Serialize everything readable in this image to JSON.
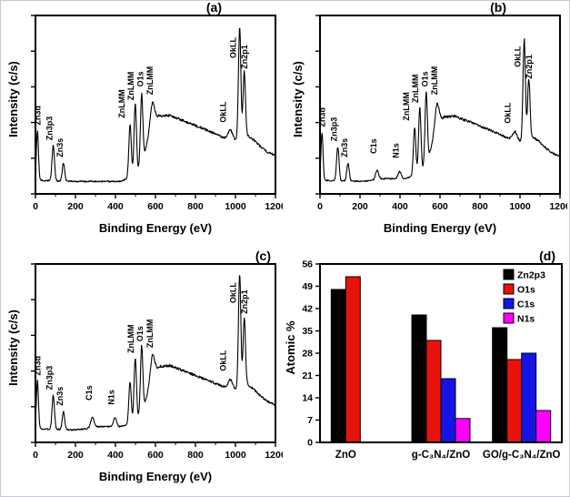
{
  "chart_data": [
    {
      "id": "a",
      "type": "line",
      "panel_tag": "(a)",
      "xlabel": "Binding Energy (eV)",
      "ylabel": "Intensity (c/s)",
      "xlim": [
        0,
        1200
      ],
      "xticks": [
        0,
        200,
        400,
        600,
        800,
        1000,
        1200
      ],
      "background": [
        [
          0,
          0.09
        ],
        [
          30,
          0.075
        ],
        [
          200,
          0.07
        ],
        [
          430,
          0.07
        ],
        [
          470,
          0.095
        ],
        [
          505,
          0.115
        ],
        [
          535,
          0.17
        ],
        [
          555,
          0.27
        ],
        [
          580,
          0.37
        ],
        [
          615,
          0.435
        ],
        [
          670,
          0.44
        ],
        [
          750,
          0.405
        ],
        [
          840,
          0.365
        ],
        [
          920,
          0.325
        ],
        [
          980,
          0.3
        ],
        [
          1010,
          0.3
        ],
        [
          1035,
          0.305
        ],
        [
          1060,
          0.325
        ],
        [
          1090,
          0.305
        ],
        [
          1120,
          0.27
        ],
        [
          1160,
          0.235
        ],
        [
          1200,
          0.215
        ]
      ],
      "peaks": [
        {
          "x": 10,
          "h": 0.27,
          "w": 5
        },
        {
          "x": 89,
          "h": 0.2,
          "w": 6
        },
        {
          "x": 140,
          "h": 0.1,
          "w": 6
        },
        {
          "x": 473,
          "h": 0.29,
          "w": 6
        },
        {
          "x": 499,
          "h": 0.39,
          "w": 6
        },
        {
          "x": 531,
          "h": 0.4,
          "w": 6
        },
        {
          "x": 585,
          "h": 0.13,
          "w": 11
        },
        {
          "x": 975,
          "h": 0.055,
          "w": 11
        },
        {
          "x": 1021,
          "h": 0.63,
          "w": 6
        },
        {
          "x": 1044,
          "h": 0.37,
          "w": 6
        }
      ],
      "labels": [
        {
          "text": "Zn3d",
          "x": 26,
          "y": 0.385
        },
        {
          "text": "Zn3p3",
          "x": 84,
          "y": 0.3
        },
        {
          "text": "Zn3s",
          "x": 136,
          "y": 0.205
        },
        {
          "text": "ZnLMM",
          "x": 446,
          "y": 0.425
        },
        {
          "text": "ZnLMM",
          "x": 492,
          "y": 0.525
        },
        {
          "text": "O1s",
          "x": 538,
          "y": 0.6
        },
        {
          "text": "ZnLMM",
          "x": 586,
          "y": 0.555
        },
        {
          "text": "OkLL",
          "x": 952,
          "y": 0.4
        },
        {
          "text": "OkLL",
          "x": 1002,
          "y": 0.76
        },
        {
          "text": "Zn2p1",
          "x": 1058,
          "y": 0.7
        }
      ]
    },
    {
      "id": "b",
      "type": "line",
      "panel_tag": "(b)",
      "xlabel": "Binding Energy (eV)",
      "ylabel": "Intensity (c/s)",
      "xlim": [
        0,
        1200
      ],
      "xticks": [
        0,
        200,
        400,
        600,
        800,
        1000,
        1200
      ],
      "background": [
        [
          0,
          0.09
        ],
        [
          30,
          0.075
        ],
        [
          200,
          0.07
        ],
        [
          260,
          0.075
        ],
        [
          310,
          0.085
        ],
        [
          420,
          0.085
        ],
        [
          470,
          0.1
        ],
        [
          505,
          0.12
        ],
        [
          535,
          0.175
        ],
        [
          560,
          0.275
        ],
        [
          585,
          0.375
        ],
        [
          620,
          0.43
        ],
        [
          675,
          0.435
        ],
        [
          755,
          0.4
        ],
        [
          845,
          0.36
        ],
        [
          925,
          0.32
        ],
        [
          985,
          0.295
        ],
        [
          1010,
          0.295
        ],
        [
          1035,
          0.3
        ],
        [
          1060,
          0.32
        ],
        [
          1090,
          0.3
        ],
        [
          1120,
          0.265
        ],
        [
          1160,
          0.23
        ],
        [
          1200,
          0.21
        ]
      ],
      "peaks": [
        {
          "x": 10,
          "h": 0.26,
          "w": 5
        },
        {
          "x": 89,
          "h": 0.19,
          "w": 6
        },
        {
          "x": 140,
          "h": 0.1,
          "w": 6
        },
        {
          "x": 285,
          "h": 0.05,
          "w": 8
        },
        {
          "x": 398,
          "h": 0.04,
          "w": 8
        },
        {
          "x": 473,
          "h": 0.27,
          "w": 6
        },
        {
          "x": 499,
          "h": 0.37,
          "w": 6
        },
        {
          "x": 531,
          "h": 0.4,
          "w": 6
        },
        {
          "x": 585,
          "h": 0.13,
          "w": 11
        },
        {
          "x": 975,
          "h": 0.05,
          "w": 11
        },
        {
          "x": 1021,
          "h": 0.57,
          "w": 6
        },
        {
          "x": 1044,
          "h": 0.34,
          "w": 6
        }
      ],
      "labels": [
        {
          "text": "Zn3d",
          "x": 26,
          "y": 0.375
        },
        {
          "text": "Zn3p3",
          "x": 84,
          "y": 0.295
        },
        {
          "text": "Zn3s",
          "x": 136,
          "y": 0.205
        },
        {
          "text": "C1s",
          "x": 282,
          "y": 0.225
        },
        {
          "text": "N1s",
          "x": 394,
          "y": 0.2
        },
        {
          "text": "ZnLMM",
          "x": 446,
          "y": 0.41
        },
        {
          "text": "ZnLMM",
          "x": 492,
          "y": 0.51
        },
        {
          "text": "O1s",
          "x": 538,
          "y": 0.6
        },
        {
          "text": "ZnLMM",
          "x": 586,
          "y": 0.555
        },
        {
          "text": "OkLL",
          "x": 952,
          "y": 0.395
        },
        {
          "text": "OkLL",
          "x": 1002,
          "y": 0.71
        },
        {
          "text": "Zn2p1",
          "x": 1058,
          "y": 0.645
        }
      ]
    },
    {
      "id": "c",
      "type": "line",
      "panel_tag": "(c)",
      "xlabel": "Binding Energy (eV)",
      "ylabel": "Intensity (c/s)",
      "xlim": [
        0,
        1200
      ],
      "xticks": [
        0,
        200,
        400,
        600,
        800,
        1000,
        1200
      ],
      "background": [
        [
          0,
          0.09
        ],
        [
          30,
          0.075
        ],
        [
          200,
          0.07
        ],
        [
          260,
          0.078
        ],
        [
          310,
          0.088
        ],
        [
          420,
          0.088
        ],
        [
          470,
          0.1
        ],
        [
          505,
          0.12
        ],
        [
          535,
          0.17
        ],
        [
          560,
          0.27
        ],
        [
          585,
          0.37
        ],
        [
          620,
          0.425
        ],
        [
          675,
          0.43
        ],
        [
          755,
          0.395
        ],
        [
          845,
          0.355
        ],
        [
          925,
          0.32
        ],
        [
          985,
          0.295
        ],
        [
          1010,
          0.295
        ],
        [
          1035,
          0.3
        ],
        [
          1060,
          0.325
        ],
        [
          1090,
          0.3
        ],
        [
          1120,
          0.265
        ],
        [
          1160,
          0.23
        ],
        [
          1200,
          0.21
        ]
      ],
      "peaks": [
        {
          "x": 10,
          "h": 0.26,
          "w": 5
        },
        {
          "x": 89,
          "h": 0.19,
          "w": 6
        },
        {
          "x": 140,
          "h": 0.1,
          "w": 6
        },
        {
          "x": 285,
          "h": 0.06,
          "w": 8
        },
        {
          "x": 398,
          "h": 0.05,
          "w": 8
        },
        {
          "x": 473,
          "h": 0.24,
          "w": 6
        },
        {
          "x": 499,
          "h": 0.36,
          "w": 6
        },
        {
          "x": 531,
          "h": 0.38,
          "w": 6
        },
        {
          "x": 585,
          "h": 0.12,
          "w": 11
        },
        {
          "x": 975,
          "h": 0.05,
          "w": 11
        },
        {
          "x": 1021,
          "h": 0.65,
          "w": 6
        },
        {
          "x": 1044,
          "h": 0.39,
          "w": 6
        }
      ],
      "labels": [
        {
          "text": "Zn3d",
          "x": 26,
          "y": 0.375
        },
        {
          "text": "Zn3p3",
          "x": 84,
          "y": 0.295
        },
        {
          "text": "Zn3s",
          "x": 136,
          "y": 0.205
        },
        {
          "text": "C1s",
          "x": 282,
          "y": 0.235
        },
        {
          "text": "N1s",
          "x": 394,
          "y": 0.21
        },
        {
          "text": "ZnLMM",
          "x": 490,
          "y": 0.5
        },
        {
          "text": "O1s",
          "x": 536,
          "y": 0.565
        },
        {
          "text": "ZnLMM",
          "x": 586,
          "y": 0.53
        },
        {
          "text": "OkLL",
          "x": 952,
          "y": 0.4
        },
        {
          "text": "OkLL",
          "x": 1002,
          "y": 0.78
        },
        {
          "text": "Zn2p1",
          "x": 1058,
          "y": 0.72
        }
      ]
    },
    {
      "id": "d",
      "type": "bar",
      "panel_tag": "(d)",
      "ylabel": "Atomic %",
      "ylim": [
        0,
        56
      ],
      "yticks": [
        0,
        7,
        14,
        21,
        28,
        35,
        42,
        49,
        56
      ],
      "categories": [
        "ZnO",
        "g-C₃N₄/ZnO",
        "GO/g-C₃N₄/ZnO"
      ],
      "series": [
        {
          "name": "Zn2p3",
          "color": "#000000",
          "values": [
            48,
            40,
            36
          ]
        },
        {
          "name": "O1s",
          "color": "#e8130c",
          "values": [
            52,
            32,
            26
          ]
        },
        {
          "name": "C1s",
          "color": "#1414e6",
          "values": [
            null,
            20,
            28
          ]
        },
        {
          "name": "N1s",
          "color": "#ff00ff",
          "values": [
            null,
            7.5,
            10
          ]
        }
      ],
      "legend_position": "top-right"
    }
  ]
}
